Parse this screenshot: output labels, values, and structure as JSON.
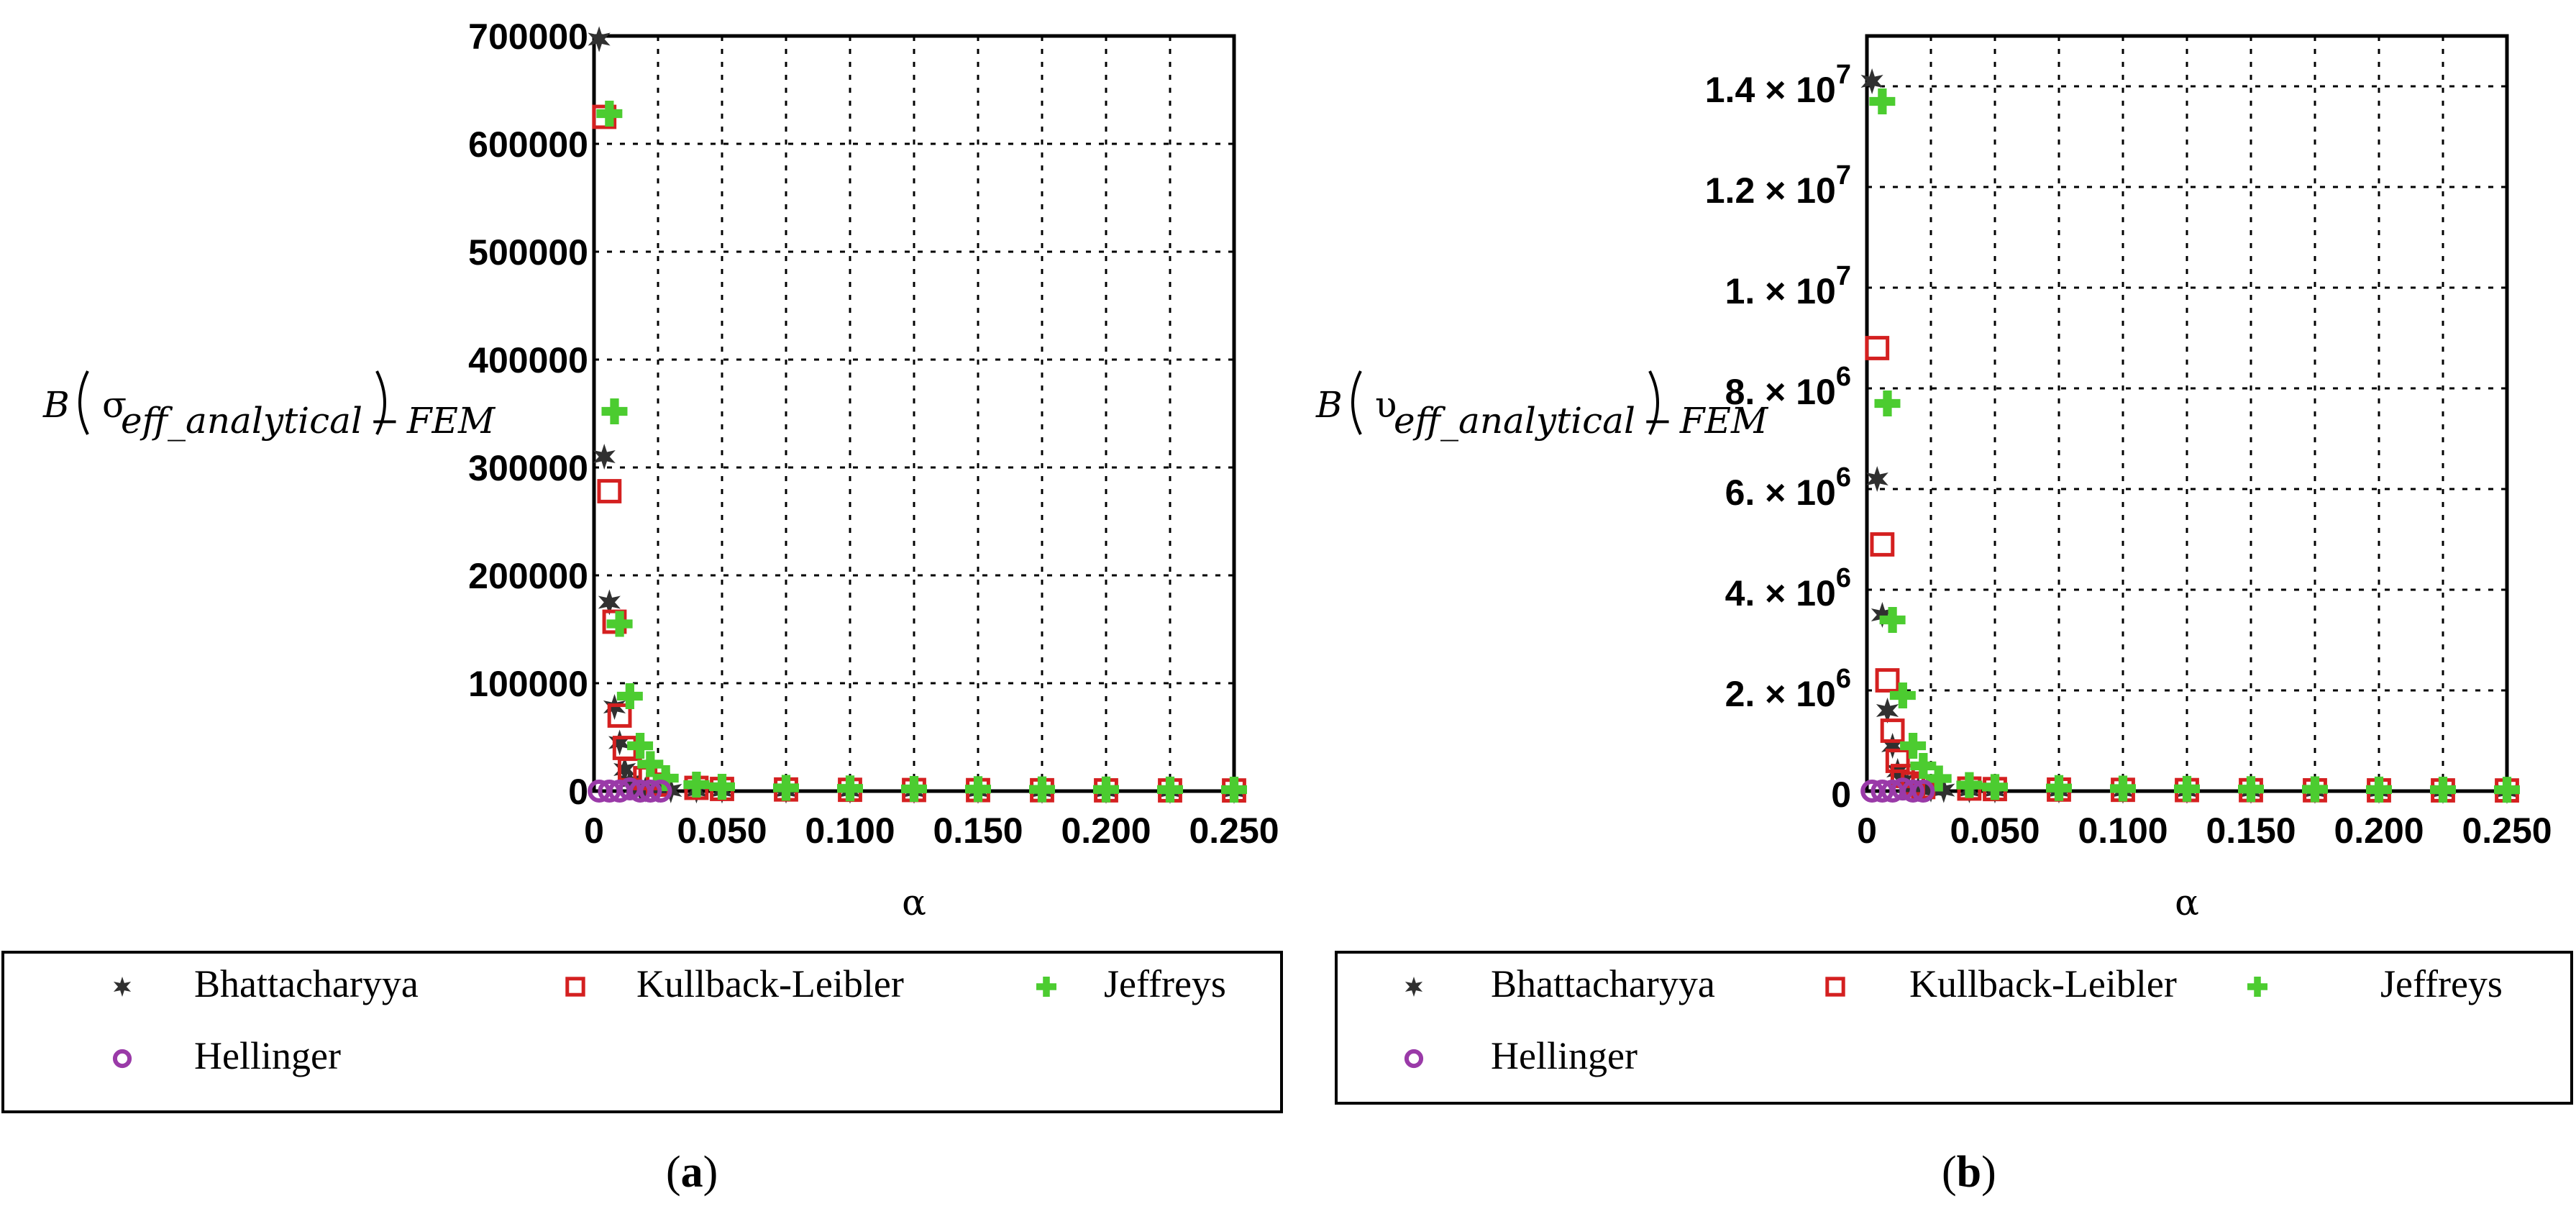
{
  "chart_data": [
    {
      "panel": "a",
      "type": "scatter",
      "ylabel_prefix": "B",
      "ylabel_symbol": "σ",
      "ylabel_subscript": "eff_analytical − FEM",
      "xlabel": "α",
      "xlim": [
        0,
        0.25
      ],
      "ylim": [
        0,
        700000
      ],
      "grid": true,
      "legend_placement": "below",
      "x_ticks": [
        0,
        0.025,
        0.05,
        0.075,
        0.1,
        0.125,
        0.15,
        0.175,
        0.2,
        0.225,
        0.25
      ],
      "x_tick_labels": [
        "0",
        "",
        "0.050",
        "",
        "0.100",
        "",
        "0.150",
        "",
        "0.200",
        "",
        "0.250"
      ],
      "y_ticks": [
        0,
        100000,
        200000,
        300000,
        400000,
        500000,
        600000,
        700000
      ],
      "y_tick_labels": [
        "0",
        "100000",
        "200000",
        "300000",
        "400000",
        "500000",
        "600000",
        "700000"
      ],
      "series": [
        {
          "name": "Bhattacharyya",
          "marker": "star",
          "color": "#303030",
          "x": [
            0.002,
            0.004,
            0.006,
            0.008,
            0.01,
            0.012,
            0.014,
            0.016,
            0.018,
            0.02,
            0.025,
            0.03,
            0.04,
            0.05,
            0.075,
            0.1,
            0.125,
            0.15,
            0.175,
            0.2,
            0.225,
            0.25
          ],
          "y": [
            697000,
            310000,
            175000,
            78000,
            45000,
            20000,
            9000,
            4000,
            2500,
            1500,
            1000,
            700,
            500,
            400,
            300,
            250,
            200,
            150,
            120,
            100,
            80,
            60
          ]
        },
        {
          "name": "Kullback-Leibler",
          "marker": "square",
          "color": "#d42020",
          "x": [
            0.004,
            0.006,
            0.008,
            0.01,
            0.012,
            0.014,
            0.02,
            0.025,
            0.04,
            0.05,
            0.075,
            0.1,
            0.125,
            0.15,
            0.175,
            0.2,
            0.225,
            0.25
          ],
          "y": [
            625000,
            278000,
            157000,
            70000,
            40000,
            20000,
            12000,
            6000,
            3000,
            2000,
            1500,
            1200,
            1000,
            900,
            800,
            700,
            650,
            600
          ]
        },
        {
          "name": "Jeffreys",
          "marker": "plus",
          "color": "#4ccc30",
          "x": [
            0.006,
            0.008,
            0.01,
            0.014,
            0.018,
            0.022,
            0.028,
            0.04,
            0.05,
            0.075,
            0.1,
            0.125,
            0.15,
            0.175,
            0.2,
            0.225,
            0.25
          ],
          "y": [
            628000,
            352000,
            155000,
            88000,
            42000,
            25000,
            12000,
            6000,
            4000,
            3000,
            2500,
            2000,
            1800,
            1600,
            1500,
            1400,
            1300
          ]
        },
        {
          "name": "Hellinger",
          "marker": "circle",
          "color": "#9a3aa8",
          "x": [
            0.002,
            0.006,
            0.01,
            0.014,
            0.018,
            0.022,
            0.026
          ],
          "y": [
            0,
            0,
            0,
            2000,
            0,
            0,
            0
          ]
        }
      ]
    },
    {
      "panel": "b",
      "type": "scatter",
      "ylabel_prefix": "B",
      "ylabel_symbol": "υ",
      "ylabel_subscript": "eff_analytical − FEM",
      "xlabel": "α",
      "xlim": [
        0,
        0.25
      ],
      "ylim": [
        0,
        15000000
      ],
      "grid": true,
      "legend_placement": "below",
      "x_ticks": [
        0,
        0.025,
        0.05,
        0.075,
        0.1,
        0.125,
        0.15,
        0.175,
        0.2,
        0.225,
        0.25
      ],
      "x_tick_labels": [
        "0",
        "",
        "0.050",
        "",
        "0.100",
        "",
        "0.150",
        "",
        "0.200",
        "",
        "0.250"
      ],
      "y_ticks": [
        0,
        2000000,
        4000000,
        6000000,
        8000000,
        10000000,
        12000000,
        14000000
      ],
      "y_tick_labels": [
        {
          "mant": "0",
          "exp": ""
        },
        {
          "mant": "2. × 10",
          "exp": "6"
        },
        {
          "mant": "4. × 10",
          "exp": "6"
        },
        {
          "mant": "6. × 10",
          "exp": "6"
        },
        {
          "mant": "8. × 10",
          "exp": "6"
        },
        {
          "mant": "1. × 10",
          "exp": "7"
        },
        {
          "mant": "1.2 × 10",
          "exp": "7"
        },
        {
          "mant": "1.4 × 10",
          "exp": "7"
        }
      ],
      "series": [
        {
          "name": "Bhattacharyya",
          "marker": "star",
          "color": "#303030",
          "x": [
            0.002,
            0.004,
            0.006,
            0.008,
            0.01,
            0.012,
            0.014,
            0.016,
            0.018,
            0.02,
            0.025,
            0.03,
            0.04,
            0.05,
            0.075,
            0.1,
            0.125,
            0.15,
            0.175,
            0.2,
            0.225,
            0.25
          ],
          "y": [
            14100000,
            6200000,
            3500000,
            1600000,
            900000,
            400000,
            200000,
            100000,
            60000,
            40000,
            30000,
            20000,
            15000,
            10000,
            8000,
            6000,
            5000,
            4000,
            3000,
            2500,
            2000,
            1500
          ]
        },
        {
          "name": "Kullback-Leibler",
          "marker": "square",
          "color": "#d42020",
          "x": [
            0.004,
            0.006,
            0.008,
            0.01,
            0.012,
            0.014,
            0.018,
            0.022,
            0.04,
            0.05,
            0.075,
            0.1,
            0.125,
            0.15,
            0.175,
            0.2,
            0.225,
            0.25
          ],
          "y": [
            8800000,
            4900000,
            2200000,
            1200000,
            600000,
            300000,
            150000,
            80000,
            50000,
            40000,
            30000,
            25000,
            20000,
            18000,
            16000,
            15000,
            14000,
            13000
          ]
        },
        {
          "name": "Jeffreys",
          "marker": "plus",
          "color": "#4ccc30",
          "x": [
            0.006,
            0.008,
            0.01,
            0.014,
            0.018,
            0.022,
            0.028,
            0.04,
            0.05,
            0.075,
            0.1,
            0.125,
            0.15,
            0.175,
            0.2,
            0.225,
            0.25
          ],
          "y": [
            13700000,
            7700000,
            3400000,
            1900000,
            900000,
            500000,
            250000,
            120000,
            80000,
            60000,
            50000,
            45000,
            40000,
            35000,
            30000,
            28000,
            26000
          ]
        },
        {
          "name": "Hellinger",
          "marker": "circle",
          "color": "#9a3aa8",
          "x": [
            0.002,
            0.006,
            0.01,
            0.014,
            0.018,
            0.022
          ],
          "y": [
            0,
            0,
            0,
            40000,
            0,
            0
          ]
        }
      ]
    }
  ],
  "legend": {
    "items": [
      {
        "name": "Bhattacharyya",
        "marker": "star",
        "color": "#303030"
      },
      {
        "name": "Kullback-Leibler",
        "marker": "square",
        "color": "#d42020"
      },
      {
        "name": "Jeffreys",
        "marker": "plus",
        "color": "#4ccc30"
      },
      {
        "name": "Hellinger",
        "marker": "circle",
        "color": "#9a3aa8"
      }
    ]
  },
  "panel_labels": [
    {
      "open": "(",
      "letter": "a",
      "close": ")"
    },
    {
      "open": "(",
      "letter": "b",
      "close": ")"
    }
  ]
}
